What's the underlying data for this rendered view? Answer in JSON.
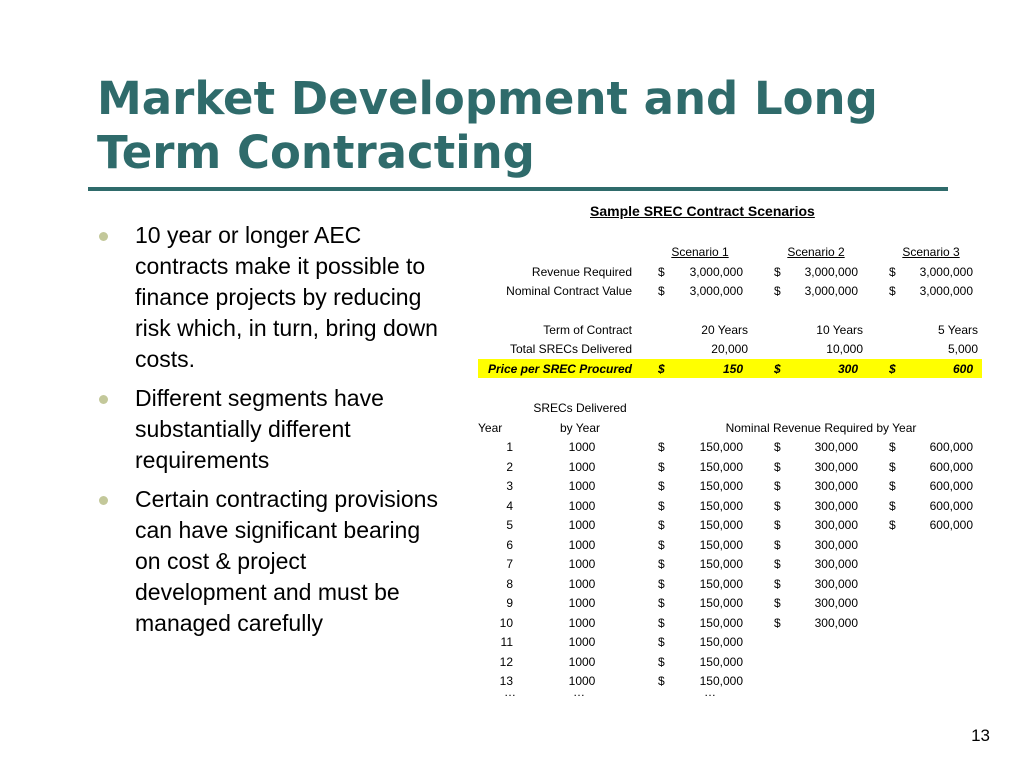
{
  "slide": {
    "title": "Market Development and Long Term Contracting",
    "page_number": "13",
    "bullets": [
      "10 year or longer AEC contracts make it possible to finance projects by reducing risk which, in turn, bring down costs.",
      "Different segments have substantially different requirements",
      "Certain contracting provisions can have significant bearing on cost & project development and must be managed carefully"
    ]
  },
  "table": {
    "title": "Sample SREC Contract Scenarios",
    "currency": "$",
    "scenario_headers": [
      "Scenario 1",
      "Scenario 2",
      "Scenario 3"
    ],
    "summary_rows": [
      {
        "label": "Revenue Required",
        "currency": true,
        "values": [
          "3,000,000",
          "3,000,000",
          "3,000,000"
        ]
      },
      {
        "label": "Nominal Contract Value",
        "currency": true,
        "values": [
          "3,000,000",
          "3,000,000",
          "3,000,000"
        ]
      },
      {
        "label": "Term of Contract",
        "currency": false,
        "values": [
          "20 Years",
          "10 Years",
          "5 Years"
        ]
      },
      {
        "label": "Total SRECs Delivered",
        "currency": false,
        "values": [
          "20,000",
          "10,000",
          "5,000"
        ]
      },
      {
        "label": "Price per SREC Procured",
        "currency": true,
        "highlight": true,
        "values": [
          "150",
          "300",
          "600"
        ]
      }
    ],
    "year_header": "Year",
    "srecs_header_line1": "SRECs Delivered",
    "srecs_header_line2": "by Year",
    "nominal_header": "Nominal Revenue Required by Year",
    "year_rows": [
      {
        "year": "1",
        "srecs": "1000",
        "values": [
          "150,000",
          "300,000",
          "600,000"
        ]
      },
      {
        "year": "2",
        "srecs": "1000",
        "values": [
          "150,000",
          "300,000",
          "600,000"
        ]
      },
      {
        "year": "3",
        "srecs": "1000",
        "values": [
          "150,000",
          "300,000",
          "600,000"
        ]
      },
      {
        "year": "4",
        "srecs": "1000",
        "values": [
          "150,000",
          "300,000",
          "600,000"
        ]
      },
      {
        "year": "5",
        "srecs": "1000",
        "values": [
          "150,000",
          "300,000",
          "600,000"
        ]
      },
      {
        "year": "6",
        "srecs": "1000",
        "values": [
          "150,000",
          "300,000"
        ]
      },
      {
        "year": "7",
        "srecs": "1000",
        "values": [
          "150,000",
          "300,000"
        ]
      },
      {
        "year": "8",
        "srecs": "1000",
        "values": [
          "150,000",
          "300,000"
        ]
      },
      {
        "year": "9",
        "srecs": "1000",
        "values": [
          "150,000",
          "300,000"
        ]
      },
      {
        "year": "10",
        "srecs": "1000",
        "values": [
          "150,000",
          "300,000"
        ]
      },
      {
        "year": "11",
        "srecs": "1000",
        "values": [
          "150,000"
        ]
      },
      {
        "year": "12",
        "srecs": "1000",
        "values": [
          "150,000"
        ]
      },
      {
        "year": "13",
        "srecs": "1000",
        "values": [
          "150,000"
        ]
      }
    ],
    "continuation": "…"
  }
}
